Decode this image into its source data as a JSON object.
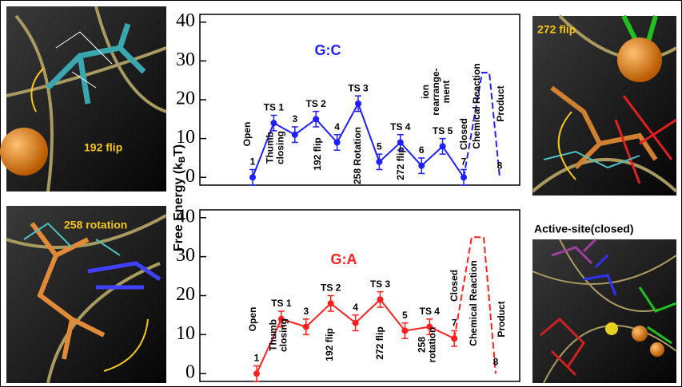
{
  "chart_data": [
    {
      "type": "line",
      "title": "G:C",
      "categories": [
        "1",
        "TS 1",
        "3",
        "TS 2",
        "4",
        "TS 3",
        "5",
        "TS 4",
        "6",
        "TS 5",
        "7",
        null,
        null,
        "8"
      ],
      "annotations": [
        [
          "Open"
        ],
        [
          "Thumb",
          "closing"
        ],
        null,
        [
          "192 flip"
        ],
        null,
        [
          "258 Rotation"
        ],
        null,
        [
          "272 flip"
        ],
        null,
        [
          "ion",
          "rearrange-",
          "ment"
        ],
        [
          "Closed"
        ],
        [
          "Chemical Reaction"
        ],
        null,
        [
          "Product"
        ]
      ],
      "series": [
        {
          "color": "#1f1fff",
          "values": [
            0,
            14,
            11,
            15,
            9,
            19,
            4,
            9,
            3,
            8,
            0,
            null,
            null,
            null
          ],
          "errors": [
            2,
            2,
            2,
            2,
            2,
            2,
            2,
            2,
            2,
            2,
            2,
            null,
            null,
            null
          ]
        },
        {
          "color": "#1f1fff",
          "dashed": true,
          "values": [
            null,
            null,
            null,
            null,
            null,
            null,
            null,
            null,
            null,
            null,
            0,
            27,
            27,
            0
          ]
        }
      ],
      "ylim": [
        -2,
        42
      ],
      "yticks": [
        0,
        10,
        20,
        30,
        40
      ]
    },
    {
      "type": "line",
      "title": "G:A",
      "categories": [
        "1",
        "TS 1",
        "3",
        "TS 2",
        "4",
        "TS 3",
        "5",
        "TS 4",
        "7",
        null,
        null,
        "8"
      ],
      "annotations": [
        [
          "Open"
        ],
        [
          "Thumb",
          "closing"
        ],
        null,
        [
          "192 flip"
        ],
        null,
        [
          "272 flip"
        ],
        null,
        [
          "258",
          "rotation"
        ],
        [
          "Closed"
        ],
        [
          "Chemical Reaction"
        ],
        null,
        [
          "Product"
        ]
      ],
      "series": [
        {
          "color": "#ff1f1f",
          "values": [
            0,
            14,
            12,
            18,
            13,
            19,
            11,
            12,
            9,
            null,
            null,
            null
          ],
          "errors": [
            2,
            2,
            2,
            2,
            2,
            2,
            2,
            2,
            2,
            null,
            null,
            null
          ]
        },
        {
          "color": "#ff1f1f",
          "dashed": true,
          "values": [
            null,
            null,
            null,
            null,
            null,
            null,
            null,
            null,
            9,
            35,
            35,
            0
          ]
        }
      ],
      "ylim": [
        -2,
        42
      ],
      "yticks": [
        0,
        10,
        20,
        30,
        40
      ]
    }
  ],
  "ylabel": [
    "Free Energy (k",
    "B",
    "T)"
  ],
  "panels": [
    "192 flip",
    "272 flip",
    "258 rotation",
    "Active-site(closed)"
  ]
}
